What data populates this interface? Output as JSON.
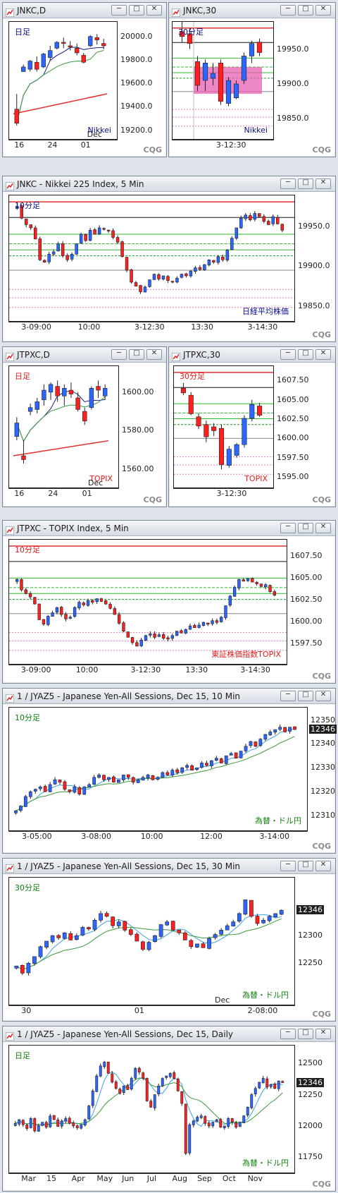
{
  "brand": "CQG",
  "colors": {
    "up_candle": "#2b66ff",
    "down_candle": "#ff1f1f",
    "jp_label": "#0b0b8c",
    "red_label": "#e21b1b",
    "green_label": "#10800e",
    "pink_zone": "#e85fb2"
  },
  "windows": [
    {
      "id": "jnkc-d",
      "title": "JNKC,D"
    },
    {
      "id": "jnkc-30",
      "title": "JNKC,30"
    },
    {
      "id": "jnkc-5",
      "title": "JNKC - Nikkei 225 Index, 5 Min"
    },
    {
      "id": "jtpxc-d",
      "title": "JTPXC,D"
    },
    {
      "id": "jtpxc-30",
      "title": "JTPXC,30"
    },
    {
      "id": "jtpxc-5",
      "title": "JTPXC - TOPIX Index, 5 Min"
    },
    {
      "id": "jyaz5-10",
      "title": "1 / JYAZ5 - Japanese Yen-All Sessions, Dec 15, 10 Min"
    },
    {
      "id": "jyaz5-30",
      "title": "1 / JYAZ5 - Japanese Yen-All Sessions, Dec 15, 30 Min"
    },
    {
      "id": "jyaz5-d",
      "title": "1 / JYAZ5 - Japanese Yen-All Sessions, Dec 15, Daily"
    }
  ],
  "chart_data": [
    {
      "id": "jnkc-d",
      "type": "candlestick",
      "period_label": "日足",
      "instrument_label": "Nikkei",
      "ylim": [
        19150,
        20100
      ],
      "yticks": [
        "20000.0",
        "19800.0",
        "19600.0",
        "19400.0",
        "19200.0"
      ],
      "xticks": [
        "16",
        "24",
        "01"
      ],
      "x_sublabel": "Dec",
      "candles": [
        [
          19380,
          19510,
          19240,
          19260
        ],
        [
          19700,
          19760,
          19700,
          19740
        ],
        [
          19720,
          19800,
          19700,
          19790
        ],
        [
          19780,
          19830,
          19700,
          19720
        ],
        [
          19740,
          19860,
          19730,
          19850
        ],
        [
          19820,
          19920,
          19790,
          19880
        ],
        [
          19900,
          19960,
          19890,
          19950
        ],
        [
          19950,
          19990,
          19900,
          19940
        ],
        [
          19920,
          19960,
          19880,
          19910
        ],
        [
          19900,
          19940,
          19840,
          19860
        ],
        [
          19840,
          19860,
          19770,
          19780
        ],
        [
          19920,
          20010,
          19910,
          20000
        ],
        [
          19990,
          20020,
          19930,
          19970
        ],
        [
          19940,
          19980,
          19890,
          19920
        ]
      ]
    },
    {
      "id": "jnkc-30",
      "type": "candlestick",
      "period_label": "30分足",
      "instrument_label": "Nikkei",
      "ylim": [
        19825,
        19985
      ],
      "yticks": [
        "19950.0",
        "19900.0",
        "19850.0"
      ],
      "xticks": [
        "3-12:30"
      ],
      "candles": [
        [
          19975,
          19990,
          19960,
          19968
        ],
        [
          19972,
          19980,
          19950,
          19958
        ],
        [
          19932,
          19940,
          19890,
          19898
        ],
        [
          19905,
          19935,
          19890,
          19930
        ],
        [
          19908,
          19930,
          19898,
          19915
        ],
        [
          19930,
          19935,
          19870,
          19875
        ],
        [
          19872,
          19910,
          19868,
          19905
        ],
        [
          19880,
          19905,
          19878,
          19900
        ],
        [
          19905,
          19945,
          19900,
          19940
        ],
        [
          19940,
          19962,
          19930,
          19958
        ],
        [
          19960,
          19965,
          19940,
          19945
        ]
      ]
    },
    {
      "id": "jnkc-5",
      "type": "candlestick",
      "period_label": "10分足",
      "instrument_label": "日経平均株価",
      "ylim": [
        19835,
        19985
      ],
      "yticks": [
        "19950.0",
        "19900.0",
        "19850.0"
      ],
      "xticks": [
        "3-09:00",
        "10:00",
        "3-12:30",
        "13:30",
        "3-14:30"
      ],
      "closes": [
        19975,
        19960,
        19952,
        19948,
        19934,
        19908,
        19905,
        19915,
        19918,
        19928,
        19913,
        19908,
        19915,
        19928,
        19940,
        19932,
        19945,
        19940,
        19948,
        19946,
        19944,
        19936,
        19930,
        19912,
        19895,
        19880,
        19875,
        19868,
        19874,
        19883,
        19890,
        19884,
        19888,
        19882,
        19880,
        19885,
        19890,
        19888,
        19894,
        19898,
        19896,
        19902,
        19908,
        19905,
        19912,
        19908,
        19920,
        19935,
        19948,
        19960,
        19964,
        19958,
        19966,
        19962,
        19956,
        19952,
        19962,
        19953,
        19945
      ]
    },
    {
      "id": "jtpxc-d",
      "type": "candlestick",
      "period_label": "日足",
      "instrument_label": "TOPIX",
      "ylim": [
        1552,
        1612
      ],
      "yticks": [
        "1600.00",
        "1580.00",
        "1560.00"
      ],
      "xticks": [
        "16",
        "24",
        "01"
      ],
      "x_sublabel": "Dec",
      "candles": [
        [
          1577,
          1587,
          1575,
          1584
        ],
        [
          1567,
          1575,
          1563,
          1565
        ],
        [
          1590,
          1594,
          1588,
          1592
        ],
        [
          1591,
          1597,
          1589,
          1595
        ],
        [
          1596,
          1604,
          1593,
          1601
        ],
        [
          1600,
          1605,
          1596,
          1604
        ],
        [
          1603,
          1606,
          1595,
          1598
        ],
        [
          1598,
          1604,
          1593,
          1602
        ],
        [
          1601,
          1605,
          1597,
          1599
        ],
        [
          1597,
          1600,
          1590,
          1591
        ],
        [
          1590,
          1592,
          1583,
          1585
        ],
        [
          1592,
          1603,
          1591,
          1602
        ],
        [
          1603,
          1606,
          1597,
          1601
        ],
        [
          1598,
          1604,
          1596,
          1602
        ]
      ]
    },
    {
      "id": "jtpxc-30",
      "type": "candlestick",
      "period_label": "30分足",
      "instrument_label": "TOPIX",
      "ylim": [
        1594,
        1609
      ],
      "yticks": [
        "1607.50",
        "1605.00",
        "1602.50",
        "1600.00",
        "1597.50",
        "1595.00"
      ],
      "xticks": [
        "3-12:30"
      ],
      "candles": [
        [
          1606.5,
          1607.2,
          1605.6,
          1605.9
        ],
        [
          1605.6,
          1606.0,
          1603.0,
          1603.2
        ],
        [
          1602.8,
          1603.3,
          1601.2,
          1601.6
        ],
        [
          1601.8,
          1602.3,
          1599.5,
          1600.2
        ],
        [
          1601.5,
          1602.0,
          1600.3,
          1601.0
        ],
        [
          1601.3,
          1601.8,
          1596.0,
          1596.6
        ],
        [
          1596.5,
          1599.0,
          1596.2,
          1598.6
        ],
        [
          1597.8,
          1599.4,
          1597.5,
          1599.2
        ],
        [
          1599.2,
          1603.0,
          1598.8,
          1602.6
        ],
        [
          1602.6,
          1605.0,
          1602.2,
          1604.4
        ],
        [
          1604.2,
          1604.6,
          1602.8,
          1603.0
        ]
      ]
    },
    {
      "id": "jtpxc-5",
      "type": "candlestick",
      "period_label": "10分足",
      "instrument_label": "東証株価指数TOPIX",
      "ylim": [
        1595.5,
        1609
      ],
      "yticks": [
        "1607.50",
        "1605.00",
        "1602.50",
        "1600.00",
        "1597.50"
      ],
      "xticks": [
        "3-09:00",
        "10:00",
        "3-12:30",
        "13:30",
        "3-14:30"
      ],
      "closes": [
        1604.8,
        1603.6,
        1603.2,
        1602.8,
        1602.0,
        1600.2,
        1599.7,
        1600.6,
        1601.0,
        1601.6,
        1600.8,
        1600.3,
        1600.5,
        1601.6,
        1602.2,
        1601.9,
        1602.4,
        1602.2,
        1602.6,
        1602.3,
        1602.0,
        1601.5,
        1600.8,
        1599.8,
        1598.9,
        1598.2,
        1597.6,
        1597.2,
        1597.9,
        1598.4,
        1598.6,
        1598.2,
        1598.5,
        1598.1,
        1598.0,
        1598.4,
        1598.9,
        1598.7,
        1599.1,
        1599.5,
        1599.3,
        1599.6,
        1599.9,
        1599.7,
        1600.1,
        1599.9,
        1600.5,
        1601.8,
        1602.9,
        1603.9,
        1604.8,
        1604.6,
        1604.9,
        1604.5,
        1604.3,
        1604.0,
        1604.2,
        1603.4,
        1603.0
      ]
    },
    {
      "id": "jyaz5-10",
      "type": "candlestick",
      "period_label": "10分足",
      "instrument_label": "為替・ドル円",
      "ylim": [
        12305,
        12354
      ],
      "yticks": [
        "12350",
        "12340",
        "12330",
        "12320",
        "12310"
      ],
      "xticks": [
        "3-05:00",
        "3-08:00",
        "10:00",
        "12:00",
        "3-14:00"
      ],
      "last_badge": "12346",
      "closes": [
        12312,
        12314,
        12318,
        12320,
        12321,
        12322,
        12320,
        12323,
        12325,
        12324,
        12321,
        12320,
        12322,
        12319,
        12322,
        12323,
        12326,
        12327,
        12325,
        12326,
        12324,
        12325,
        12327,
        12326,
        12324,
        12325,
        12326,
        12327,
        12325,
        12326,
        12328,
        12327,
        12329,
        12328,
        12330,
        12331,
        12329,
        12330,
        12332,
        12331,
        12333,
        12334,
        12332,
        12335,
        12336,
        12334,
        12337,
        12339,
        12341,
        12339,
        12342,
        12344,
        12345,
        12346,
        12347,
        12345,
        12347,
        12346
      ]
    },
    {
      "id": "jyaz5-30",
      "type": "candlestick",
      "period_label": "30分足",
      "instrument_label": "為替・ドル円",
      "ylim": [
        12180,
        12400
      ],
      "yticks": [
        "12300",
        "12250"
      ],
      "xticks": [
        "30",
        "01",
        "2-08:00"
      ],
      "x_sublabel": "Dec",
      "last_badge": "12346",
      "closes": [
        12245,
        12232,
        12250,
        12262,
        12280,
        12290,
        12300,
        12296,
        12305,
        12292,
        12300,
        12315,
        12312,
        12328,
        12340,
        12335,
        12318,
        12325,
        12310,
        12302,
        12290,
        12275,
        12288,
        12300,
        12320,
        12325,
        12310,
        12305,
        12292,
        12280,
        12285,
        12278,
        12295,
        12302,
        12310,
        12318,
        12325,
        12340,
        12365,
        12335,
        12322,
        12328,
        12335,
        12340,
        12346
      ]
    },
    {
      "id": "jyaz5-d",
      "type": "candlestick",
      "period_label": "日足",
      "instrument_label": "為替・ドル円",
      "ylim": [
        11650,
        12620
      ],
      "yticks": [
        "12500",
        "12250",
        "12000",
        "11750"
      ],
      "xticks": [
        "Mar",
        "15",
        "Apr",
        "May",
        "Jun",
        "Jul",
        "Aug",
        "Sep",
        "Oct",
        "Nov"
      ],
      "last_badge": "12346",
      "closes": [
        12020,
        12050,
        12010,
        11980,
        12060,
        11960,
        12000,
        12030,
        11990,
        12080,
        12050,
        11995,
        12040,
        12060,
        12020,
        12000,
        11985,
        12010,
        12050,
        12160,
        12280,
        12400,
        12480,
        12510,
        12420,
        12350,
        12300,
        12260,
        12320,
        12290,
        12380,
        12460,
        12430,
        12380,
        12200,
        12150,
        12250,
        12320,
        12380,
        12400,
        12420,
        12380,
        12280,
        12180,
        11780,
        12010,
        12040,
        12070,
        12080,
        12020,
        12000,
        12030,
        12050,
        11990,
        12000,
        12060,
        12030,
        11990,
        12030,
        12080,
        12150,
        12250,
        12300,
        12350,
        12380,
        12310,
        12330,
        12300,
        12360,
        12346
      ]
    }
  ]
}
